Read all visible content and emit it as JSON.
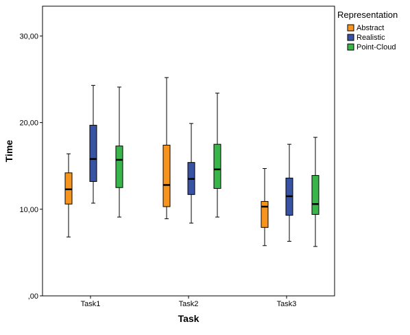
{
  "chart_data": {
    "type": "boxplot",
    "title": "",
    "xlabel": "Task",
    "ylabel": "Time",
    "ylim": [
      0,
      35
    ],
    "yticks": [
      0,
      10,
      20,
      30
    ],
    "ytick_labels": [
      ",00",
      "10,00",
      "20,00",
      "30,00"
    ],
    "categories": [
      "Task1",
      "Task2",
      "Task3"
    ],
    "legend_title": "Representation",
    "legend_position": "right",
    "grid": false,
    "series": [
      {
        "name": "Abstract",
        "color": "#f7941d",
        "boxes": [
          {
            "min": 6.8,
            "q1": 10.6,
            "median": 12.3,
            "q3": 14.2,
            "max": 16.4
          },
          {
            "min": 8.9,
            "q1": 10.3,
            "median": 12.8,
            "q3": 17.4,
            "max": 25.2
          },
          {
            "min": 5.8,
            "q1": 7.9,
            "median": 10.3,
            "q3": 10.9,
            "max": 14.7
          }
        ]
      },
      {
        "name": "Realistic",
        "color": "#3953a4",
        "boxes": [
          {
            "min": 10.7,
            "q1": 13.2,
            "median": 15.8,
            "q3": 19.7,
            "max": 24.3
          },
          {
            "min": 8.4,
            "q1": 11.7,
            "median": 13.5,
            "q3": 15.4,
            "max": 19.9
          },
          {
            "min": 6.3,
            "q1": 9.3,
            "median": 11.5,
            "q3": 13.6,
            "max": 17.5
          }
        ]
      },
      {
        "name": "Point-Cloud",
        "color": "#39b54a",
        "boxes": [
          {
            "min": 9.1,
            "q1": 12.5,
            "median": 15.7,
            "q3": 17.3,
            "max": 24.1
          },
          {
            "min": 9.1,
            "q1": 12.4,
            "median": 14.6,
            "q3": 17.5,
            "max": 23.4
          },
          {
            "min": 5.7,
            "q1": 9.4,
            "median": 10.6,
            "q3": 13.9,
            "max": 18.3
          }
        ]
      }
    ]
  }
}
